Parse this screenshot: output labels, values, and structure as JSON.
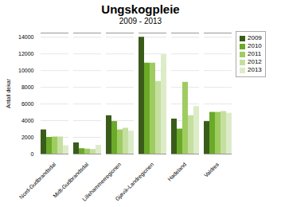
{
  "chart_data": {
    "type": "bar",
    "title": "Ungskogpleie",
    "subtitle": "2009 - 2013",
    "ylabel": "Antall dekar",
    "categories": [
      "Nord-Gudbrandsdal",
      "Midt-Gudbrandsdal",
      "Lillehammerregionen",
      "Gjøvik-Landregionen",
      "Hadeland",
      "Valdres"
    ],
    "series": [
      {
        "name": "2009",
        "color": "#3a5c1a",
        "values": [
          2900,
          1350,
          4600,
          14000,
          4200,
          3900
        ]
      },
      {
        "name": "2010",
        "color": "#6aaa28",
        "values": [
          2000,
          650,
          3900,
          10900,
          3000,
          5000
        ]
      },
      {
        "name": "2011",
        "color": "#9fcc60",
        "values": [
          2050,
          600,
          2900,
          10900,
          8600,
          5000
        ]
      },
      {
        "name": "2012",
        "color": "#c5dfa0",
        "values": [
          2050,
          550,
          3100,
          8700,
          4600,
          5100
        ]
      },
      {
        "name": "2013",
        "color": "#ddecc8",
        "values": [
          1000,
          1050,
          2750,
          11900,
          5700,
          4900
        ]
      }
    ],
    "ylim": [
      0,
      14500
    ],
    "yticks": [
      0,
      2000,
      4000,
      6000,
      8000,
      10000,
      12000,
      14000
    ],
    "grid": true,
    "legend": "upper right"
  }
}
